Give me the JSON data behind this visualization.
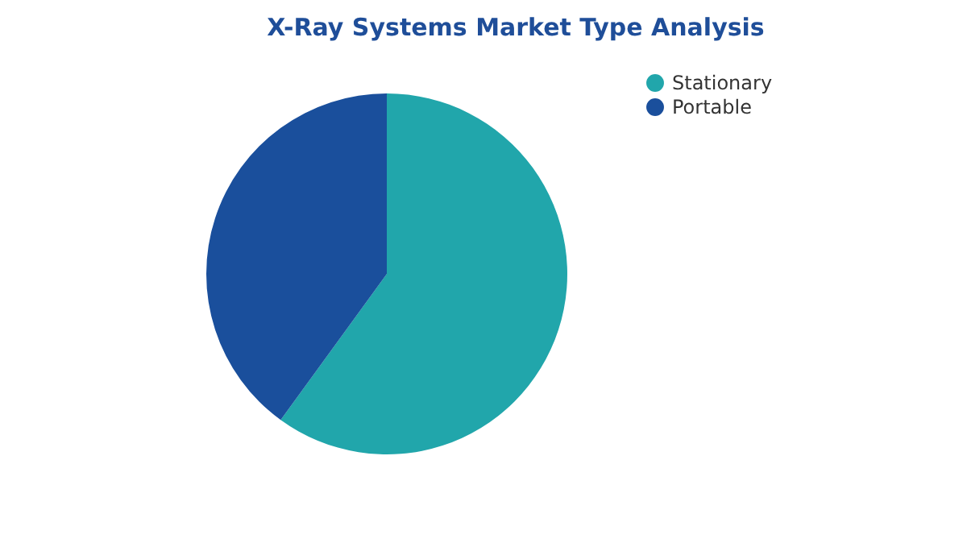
{
  "chart_data": {
    "type": "pie",
    "title": "X-Ray Systems Market Type Analysis",
    "categories": [
      "Stationary",
      "Portable"
    ],
    "values": [
      60,
      40
    ],
    "colors": [
      "#21a6ab",
      "#1a4f9c"
    ],
    "legend": "right"
  }
}
